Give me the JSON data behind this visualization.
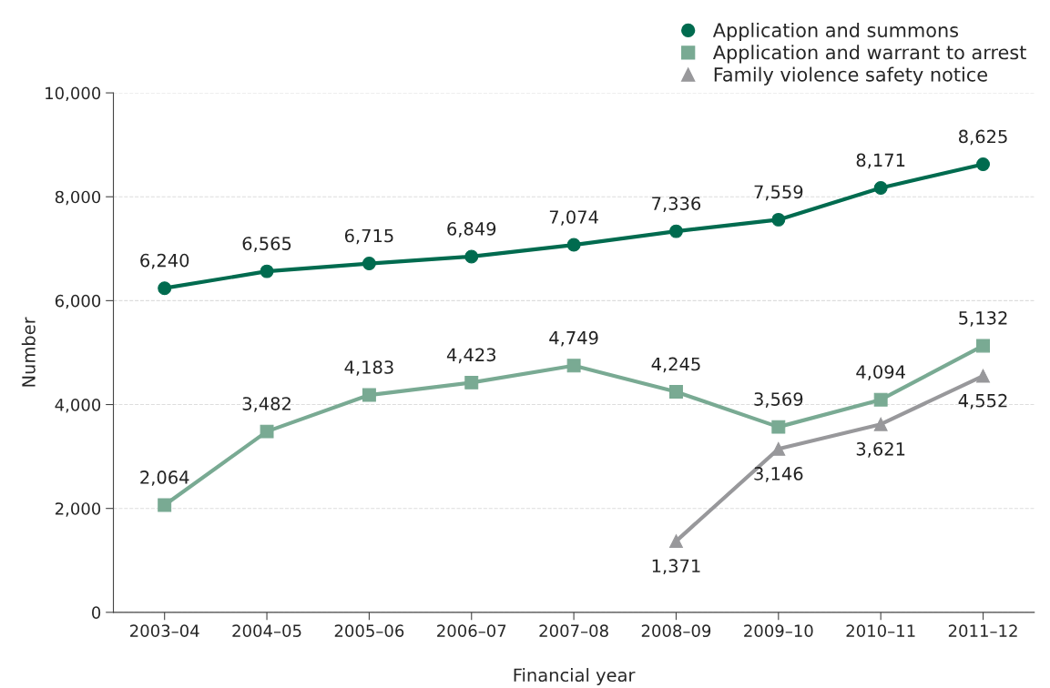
{
  "chart_data": {
    "type": "line",
    "xlabel": "Financial year",
    "ylabel": "Number",
    "categories": [
      "2003–04",
      "2004–05",
      "2005–06",
      "2006–07",
      "2007–08",
      "2008–09",
      "2009–10",
      "2010–11",
      "2011–12"
    ],
    "series": [
      {
        "name": "Application and summons",
        "color": "#006b4f",
        "marker": "circle",
        "values": [
          6240,
          6565,
          6715,
          6849,
          7074,
          7336,
          7559,
          8171,
          8625
        ],
        "value_labels": [
          "6,240",
          "6,565",
          "6,715",
          "6,849",
          "7,074",
          "7,336",
          "7,559",
          "8,171",
          "8,625"
        ]
      },
      {
        "name": "Application and warrant to arrest",
        "color": "#79aa93",
        "marker": "square",
        "values": [
          2064,
          3482,
          4183,
          4423,
          4749,
          4245,
          3569,
          4094,
          5132
        ],
        "value_labels": [
          "2,064",
          "3,482",
          "4,183",
          "4,423",
          "4,749",
          "4,245",
          "3,569",
          "4,094",
          "5,132"
        ]
      },
      {
        "name": "Family violence safety notice",
        "color": "#98989b",
        "marker": "triangle",
        "values": [
          null,
          null,
          null,
          null,
          null,
          1371,
          3146,
          3621,
          4552
        ],
        "value_labels": [
          null,
          null,
          null,
          null,
          null,
          "1,371",
          "3,146",
          "3,621",
          "4,552"
        ]
      }
    ],
    "ylim": [
      0,
      10000
    ],
    "yticks": [
      0,
      {
        "value": 2000,
        "label": "2,000"
      },
      {
        "value": 4000,
        "label": "4,000"
      },
      {
        "value": 6000,
        "label": "6,000"
      },
      {
        "value": 8000,
        "label": "8,000"
      },
      {
        "value": 10000,
        "label": "10,000"
      }
    ],
    "grid": "y",
    "legend": "top right",
    "line_style": "solid"
  }
}
